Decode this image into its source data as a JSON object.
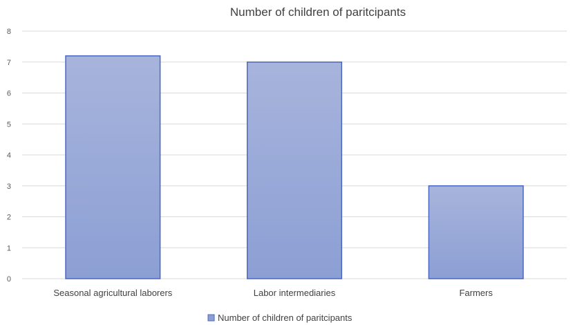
{
  "chart_data": {
    "type": "bar",
    "title": "Number of children of paritcipants",
    "categories": [
      "Seasonal agricultural laborers",
      "Labor intermediaries",
      "Farmers"
    ],
    "series": [
      {
        "name": "Number of children of paritcipants",
        "values": [
          7.2,
          7,
          3
        ]
      }
    ],
    "yticks": [
      "0",
      "1",
      "2",
      "3",
      "4",
      "5",
      "6",
      "7",
      "8"
    ],
    "ylim": [
      0,
      8
    ],
    "grid": true,
    "legend_position": "bottom",
    "colors": {
      "bar_top": "#a7b4dc",
      "bar_bottom": "#8c9fd4",
      "bar_border": "#4a67c4",
      "grid": "#d9d9d9"
    }
  }
}
